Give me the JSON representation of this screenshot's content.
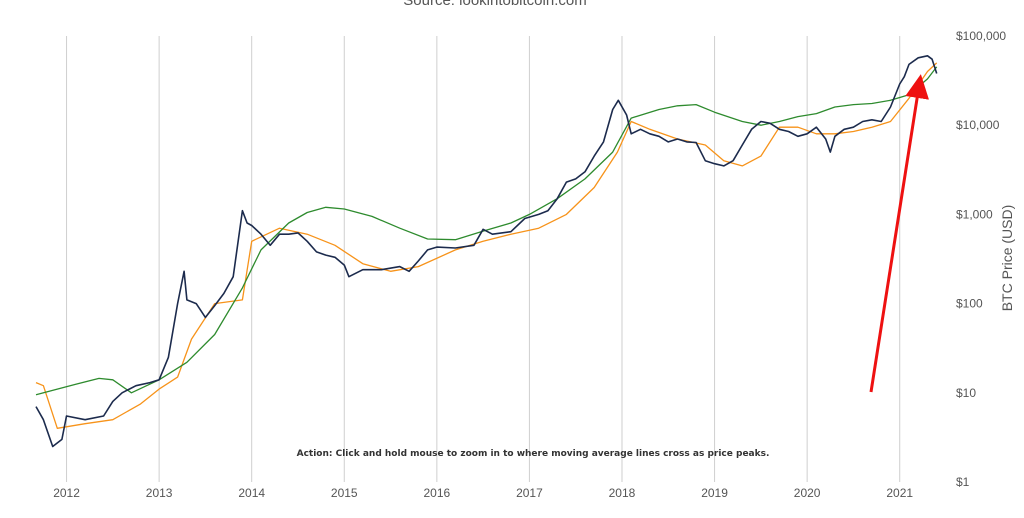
{
  "source_text": "Source: lookintobitcoin.com",
  "chart_data": {
    "type": "line",
    "ylabel": "BTC Price (USD)",
    "yscale": "log",
    "ylim": [
      1,
      100000
    ],
    "xlim": [
      2011.67,
      2021.5
    ],
    "x_ticks": [
      "2012",
      "2013",
      "2014",
      "2015",
      "2016",
      "2017",
      "2018",
      "2019",
      "2020",
      "2021"
    ],
    "y_ticks": [
      "$1",
      "$10",
      "$100",
      "$1,000",
      "$10,000",
      "$100,000"
    ],
    "annotation": "Action: Click and hold mouse to zoom in to where moving average lines cross as price peaks.",
    "series": [
      {
        "color": "#1c2b4d",
        "x": [
          2011.67,
          2011.75,
          2011.85,
          2011.95,
          2012.0,
          2012.2,
          2012.4,
          2012.5,
          2012.6,
          2012.75,
          2012.9,
          2013.0,
          2013.1,
          2013.2,
          2013.27,
          2013.3,
          2013.4,
          2013.5,
          2013.6,
          2013.7,
          2013.8,
          2013.9,
          2013.95,
          2014.0,
          2014.1,
          2014.2,
          2014.3,
          2014.4,
          2014.5,
          2014.6,
          2014.7,
          2014.8,
          2014.9,
          2015.0,
          2015.05,
          2015.2,
          2015.4,
          2015.6,
          2015.7,
          2015.8,
          2015.9,
          2016.0,
          2016.2,
          2016.4,
          2016.5,
          2016.6,
          2016.8,
          2016.95,
          2017.1,
          2017.2,
          2017.3,
          2017.4,
          2017.5,
          2017.6,
          2017.7,
          2017.8,
          2017.9,
          2017.96,
          2018.05,
          2018.1,
          2018.2,
          2018.3,
          2018.4,
          2018.5,
          2018.6,
          2018.7,
          2018.8,
          2018.9,
          2019.0,
          2019.1,
          2019.2,
          2019.3,
          2019.4,
          2019.5,
          2019.6,
          2019.7,
          2019.8,
          2019.9,
          2020.0,
          2020.1,
          2020.2,
          2020.25,
          2020.3,
          2020.4,
          2020.5,
          2020.6,
          2020.7,
          2020.8,
          2020.9,
          2021.0,
          2021.05,
          2021.1,
          2021.2,
          2021.3,
          2021.35,
          2021.4
        ],
        "values": [
          7,
          5,
          2.5,
          3,
          5.5,
          5,
          5.5,
          8,
          10,
          12,
          13,
          14,
          25,
          100,
          230,
          110,
          100,
          70,
          95,
          130,
          200,
          1100,
          800,
          750,
          600,
          450,
          600,
          600,
          620,
          500,
          380,
          350,
          330,
          270,
          200,
          240,
          240,
          260,
          230,
          300,
          400,
          430,
          420,
          450,
          680,
          600,
          640,
          900,
          1000,
          1100,
          1500,
          2300,
          2500,
          3000,
          4500,
          6500,
          15000,
          19000,
          13000,
          8000,
          9000,
          8000,
          7500,
          6500,
          7000,
          6500,
          6400,
          4000,
          3700,
          3500,
          4000,
          6000,
          9000,
          11000,
          10500,
          9000,
          8500,
          7500,
          8000,
          9500,
          7000,
          5000,
          7500,
          9000,
          9500,
          11000,
          11500,
          11000,
          16000,
          29000,
          35000,
          48000,
          57000,
          60000,
          55000,
          38000
        ]
      },
      {
        "color": "#f7931a",
        "x": [
          2011.67,
          2011.75,
          2011.9,
          2012.2,
          2012.5,
          2012.8,
          2013.0,
          2013.2,
          2013.35,
          2013.6,
          2013.9,
          2014.0,
          2014.3,
          2014.6,
          2014.9,
          2015.2,
          2015.5,
          2015.8,
          2016.2,
          2016.5,
          2016.8,
          2017.1,
          2017.4,
          2017.7,
          2017.95,
          2018.1,
          2018.3,
          2018.6,
          2018.9,
          2019.1,
          2019.3,
          2019.5,
          2019.7,
          2019.9,
          2020.1,
          2020.3,
          2020.5,
          2020.7,
          2020.9,
          2021.1,
          2021.3,
          2021.4
        ],
        "values": [
          13,
          12,
          4,
          4.5,
          5,
          7.5,
          11,
          15,
          40,
          100,
          110,
          500,
          700,
          600,
          450,
          280,
          230,
          260,
          400,
          500,
          600,
          700,
          1000,
          2000,
          5000,
          11000,
          9000,
          7000,
          6000,
          4000,
          3500,
          4500,
          9500,
          9500,
          8000,
          8000,
          8500,
          9500,
          11000,
          20000,
          40000,
          50000
        ]
      },
      {
        "color": "#2e8b2e",
        "x": [
          2011.67,
          2011.9,
          2012.1,
          2012.35,
          2012.5,
          2012.7,
          2013.0,
          2013.3,
          2013.6,
          2013.9,
          2014.1,
          2014.4,
          2014.6,
          2014.8,
          2015.0,
          2015.3,
          2015.6,
          2015.9,
          2016.2,
          2016.5,
          2016.8,
          2017.0,
          2017.3,
          2017.6,
          2017.9,
          2018.1,
          2018.4,
          2018.6,
          2018.8,
          2019.0,
          2019.3,
          2019.5,
          2019.7,
          2019.9,
          2020.1,
          2020.3,
          2020.5,
          2020.7,
          2020.9,
          2021.1,
          2021.3,
          2021.4
        ],
        "values": [
          9.5,
          11,
          12.5,
          14.5,
          14,
          10,
          14,
          22,
          45,
          150,
          400,
          800,
          1050,
          1200,
          1150,
          950,
          700,
          530,
          520,
          650,
          800,
          1000,
          1500,
          2500,
          5000,
          12000,
          15000,
          16500,
          17000,
          14000,
          11000,
          10000,
          11000,
          12500,
          13500,
          16000,
          17000,
          17500,
          19000,
          22000,
          33000,
          45000
        ]
      }
    ]
  }
}
